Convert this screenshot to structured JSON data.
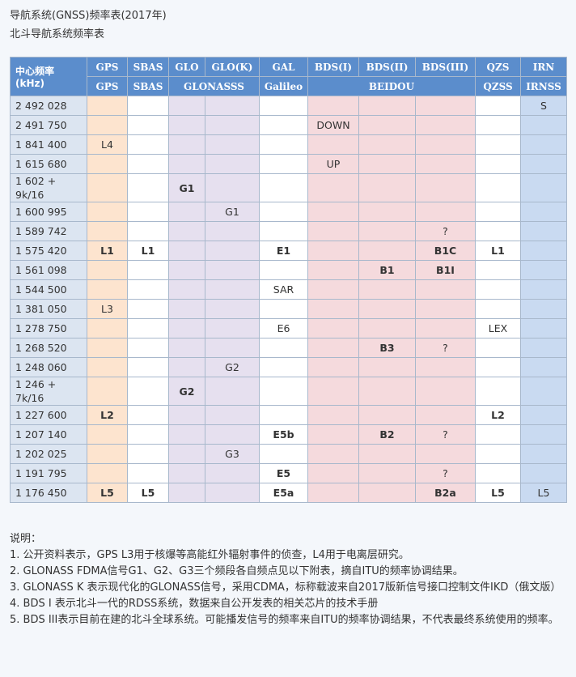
{
  "title": "导航系统(GNSS)频率表(2017年)",
  "subtitle": "北斗导航系统频率表",
  "table": {
    "header_row1": [
      "中心频率 (kHz)",
      "GPS",
      "SBAS",
      "GLO",
      "GLO(K)",
      "GAL",
      "BDS(I)",
      "BDS(II)",
      "BDS(III)",
      "QZS",
      "IRN"
    ],
    "header_row2": [
      {
        "text": "GPS",
        "span": 1
      },
      {
        "text": "SBAS",
        "span": 1
      },
      {
        "text": "GLONASSS",
        "span": 2
      },
      {
        "text": "Galileo",
        "span": 1
      },
      {
        "text": "BEIDOU",
        "span": 3
      },
      {
        "text": "QZSS",
        "span": 1
      },
      {
        "text": "IRNSS",
        "span": 1
      }
    ],
    "column_colors": [
      "#fde4cf",
      "#ffffff",
      "#e6e0ef",
      "#e6e0ef",
      "#ffffff",
      "#f5dadd",
      "#f5dadd",
      "#f5dadd",
      "#ffffff",
      "#c9daf1"
    ],
    "rows": [
      {
        "freq": "2 492 028",
        "cells": [
          null,
          null,
          null,
          null,
          null,
          null,
          null,
          null,
          null,
          {
            "text": "S",
            "bold": false
          }
        ]
      },
      {
        "freq": "2 491 750",
        "cells": [
          null,
          null,
          null,
          null,
          null,
          {
            "text": "DOWN",
            "bold": false
          },
          null,
          null,
          null,
          null
        ]
      },
      {
        "freq": "1 841 400",
        "cells": [
          {
            "text": "L4",
            "bold": false
          },
          null,
          null,
          null,
          null,
          null,
          null,
          null,
          null,
          null
        ]
      },
      {
        "freq": "1 615 680",
        "cells": [
          null,
          null,
          null,
          null,
          null,
          {
            "text": "UP",
            "bold": false
          },
          null,
          null,
          null,
          null
        ]
      },
      {
        "freq": "1 602 + 9k/16",
        "cells": [
          null,
          null,
          {
            "text": "G1",
            "bold": true
          },
          null,
          null,
          null,
          null,
          null,
          null,
          null
        ]
      },
      {
        "freq": "1 600 995",
        "cells": [
          null,
          null,
          null,
          {
            "text": "G1",
            "bold": false
          },
          null,
          null,
          null,
          null,
          null,
          null
        ]
      },
      {
        "freq": "1 589 742",
        "cells": [
          null,
          null,
          null,
          null,
          null,
          null,
          null,
          {
            "text": "?",
            "bold": false
          },
          null,
          null
        ]
      },
      {
        "freq": "1 575 420",
        "cells": [
          {
            "text": "L1",
            "bold": true
          },
          {
            "text": "L1",
            "bold": true
          },
          null,
          null,
          {
            "text": "E1",
            "bold": true
          },
          null,
          null,
          {
            "text": "B1C",
            "bold": true
          },
          {
            "text": "L1",
            "bold": true
          },
          null
        ]
      },
      {
        "freq": "1 561 098",
        "cells": [
          null,
          null,
          null,
          null,
          null,
          null,
          {
            "text": "B1",
            "bold": true
          },
          {
            "text": "B1I",
            "bold": true
          },
          null,
          null
        ]
      },
      {
        "freq": "1 544 500",
        "cells": [
          null,
          null,
          null,
          null,
          {
            "text": "SAR",
            "bold": false
          },
          null,
          null,
          null,
          null,
          null
        ]
      },
      {
        "freq": "1 381 050",
        "cells": [
          {
            "text": "L3",
            "bold": false
          },
          null,
          null,
          null,
          null,
          null,
          null,
          null,
          null,
          null
        ]
      },
      {
        "freq": "1 278 750",
        "cells": [
          null,
          null,
          null,
          null,
          {
            "text": "E6",
            "bold": false
          },
          null,
          null,
          null,
          {
            "text": "LEX",
            "bold": false
          },
          null
        ]
      },
      {
        "freq": "1 268 520",
        "cells": [
          null,
          null,
          null,
          null,
          null,
          null,
          {
            "text": "B3",
            "bold": true
          },
          {
            "text": "?",
            "bold": false
          },
          null,
          null
        ]
      },
      {
        "freq": "1 248 060",
        "cells": [
          null,
          null,
          null,
          {
            "text": "G2",
            "bold": false
          },
          null,
          null,
          null,
          null,
          null,
          null
        ]
      },
      {
        "freq": "1 246 + 7k/16",
        "cells": [
          null,
          null,
          {
            "text": "G2",
            "bold": true
          },
          null,
          null,
          null,
          null,
          null,
          null,
          null
        ]
      },
      {
        "freq": "1 227 600",
        "cells": [
          {
            "text": "L2",
            "bold": true
          },
          null,
          null,
          null,
          null,
          null,
          null,
          null,
          {
            "text": "L2",
            "bold": true
          },
          null
        ]
      },
      {
        "freq": "1 207 140",
        "cells": [
          null,
          null,
          null,
          null,
          {
            "text": "E5b",
            "bold": true
          },
          null,
          {
            "text": "B2",
            "bold": true
          },
          {
            "text": "?",
            "bold": false
          },
          null,
          null
        ]
      },
      {
        "freq": "1 202 025",
        "cells": [
          null,
          null,
          null,
          {
            "text": "G3",
            "bold": false
          },
          null,
          null,
          null,
          null,
          null,
          null
        ]
      },
      {
        "freq": "1 191 795",
        "cells": [
          null,
          null,
          null,
          null,
          {
            "text": "E5",
            "bold": true
          },
          null,
          null,
          {
            "text": "?",
            "bold": false
          },
          null,
          null
        ]
      },
      {
        "freq": "1 176 450",
        "cells": [
          {
            "text": "L5",
            "bold": true
          },
          {
            "text": "L5",
            "bold": true
          },
          null,
          null,
          {
            "text": "E5a",
            "bold": true
          },
          null,
          null,
          {
            "text": "B2a",
            "bold": true
          },
          {
            "text": "L5",
            "bold": true
          },
          {
            "text": "L5",
            "bold": false
          }
        ]
      }
    ]
  },
  "notes": {
    "heading": "说明：",
    "items": [
      "1. 公开资料表示，GPS L3用于核爆等高能红外辐射事件的侦查，L4用于电离层研究。",
      "2. GLONASS FDMA信号G1、G2、G3三个频段各自频点见以下附表，摘自ITU的频率协调结果。",
      "3. GLONASS K 表示现代化的GLONASS信号，采用CDMA，标称载波来自2017版新信号接口控制文件IKD（俄文版）",
      "4. BDS I 表示北斗一代的RDSS系统，数据来自公开发表的相关芯片的技术手册",
      "5. BDS III表示目前在建的北斗全球系统。可能播发信号的频率来自ITU的频率协调结果，不代表最终系统使用的频率。"
    ]
  }
}
